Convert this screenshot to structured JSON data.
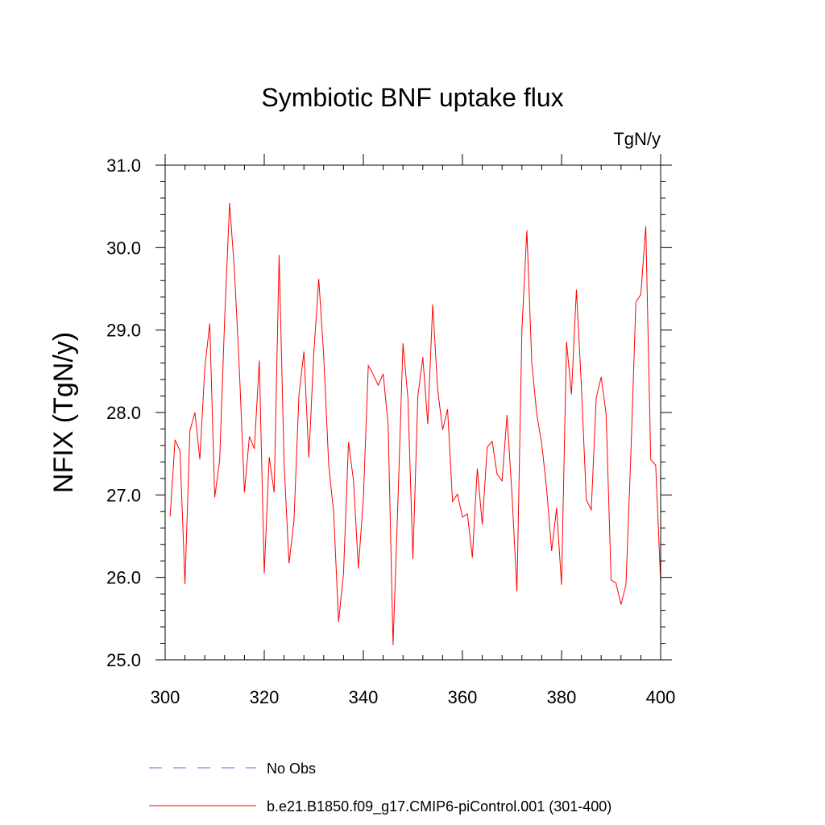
{
  "chart_data": {
    "type": "line",
    "title": "Symbiotic BNF uptake flux",
    "units": "TgN/y",
    "ylabel": "NFIX  (TgN/y)",
    "xlabel": "",
    "xlim": [
      300,
      400
    ],
    "ylim": [
      25.0,
      31.0
    ],
    "x_ticks": [
      300,
      320,
      340,
      360,
      380,
      400
    ],
    "x_tick_labels": [
      "300",
      "320",
      "340",
      "360",
      "380",
      "400"
    ],
    "y_ticks": [
      25.0,
      26.0,
      27.0,
      28.0,
      29.0,
      30.0,
      31.0
    ],
    "y_tick_labels": [
      "25.0",
      "26.0",
      "27.0",
      "28.0",
      "29.0",
      "30.0",
      "31.0"
    ],
    "grid": false,
    "legend_position": "bottom",
    "series": [
      {
        "name": "b.e21.B1850.f09_g17.CMIP6-piControl.001 (301-400)",
        "color": "#ff0000",
        "style": "solid",
        "x": [
          301,
          302,
          303,
          304,
          305,
          306,
          307,
          308,
          309,
          310,
          311,
          312,
          313,
          314,
          315,
          316,
          317,
          318,
          319,
          320,
          321,
          322,
          323,
          324,
          325,
          326,
          327,
          328,
          329,
          330,
          331,
          332,
          333,
          334,
          335,
          336,
          337,
          338,
          339,
          340,
          341,
          342,
          343,
          344,
          345,
          346,
          347,
          348,
          349,
          350,
          351,
          352,
          353,
          354,
          355,
          356,
          357,
          358,
          359,
          360,
          361,
          362,
          363,
          364,
          365,
          366,
          367,
          368,
          369,
          370,
          371,
          372,
          373,
          374,
          375,
          376,
          377,
          378,
          379,
          380,
          381,
          382,
          383,
          384,
          385,
          386,
          387,
          388,
          389,
          390,
          391,
          392,
          393,
          394,
          395,
          396,
          397,
          398,
          399,
          400
        ],
        "values": [
          26.74,
          27.67,
          27.53,
          25.92,
          27.78,
          28.0,
          27.43,
          28.54,
          29.08,
          26.97,
          27.42,
          29.12,
          30.54,
          29.71,
          28.49,
          27.03,
          27.71,
          27.56,
          28.63,
          26.05,
          27.46,
          27.03,
          29.91,
          27.38,
          26.17,
          26.69,
          28.21,
          28.74,
          27.45,
          28.72,
          29.62,
          28.69,
          27.37,
          26.79,
          25.46,
          26.05,
          27.64,
          27.18,
          26.11,
          26.96,
          28.57,
          28.46,
          28.33,
          28.47,
          27.86,
          25.18,
          26.96,
          28.84,
          28.17,
          26.22,
          28.2,
          28.67,
          27.86,
          29.31,
          28.28,
          27.79,
          28.04,
          26.92,
          27.01,
          26.73,
          26.77,
          26.24,
          27.32,
          26.64,
          27.58,
          27.65,
          27.25,
          27.17,
          27.97,
          27.0,
          25.83,
          29.0,
          30.21,
          28.6,
          27.98,
          27.62,
          27.07,
          26.32,
          26.84,
          25.91,
          28.86,
          28.22,
          29.49,
          28.33,
          26.94,
          26.82,
          28.18,
          28.43,
          27.98,
          25.97,
          25.93,
          25.67,
          25.91,
          27.51,
          29.34,
          29.43,
          30.26,
          27.43,
          27.36,
          25.94
        ]
      },
      {
        "name": "No Obs",
        "color": "#6666cc",
        "style": "dashed",
        "x": [],
        "values": []
      }
    ]
  }
}
